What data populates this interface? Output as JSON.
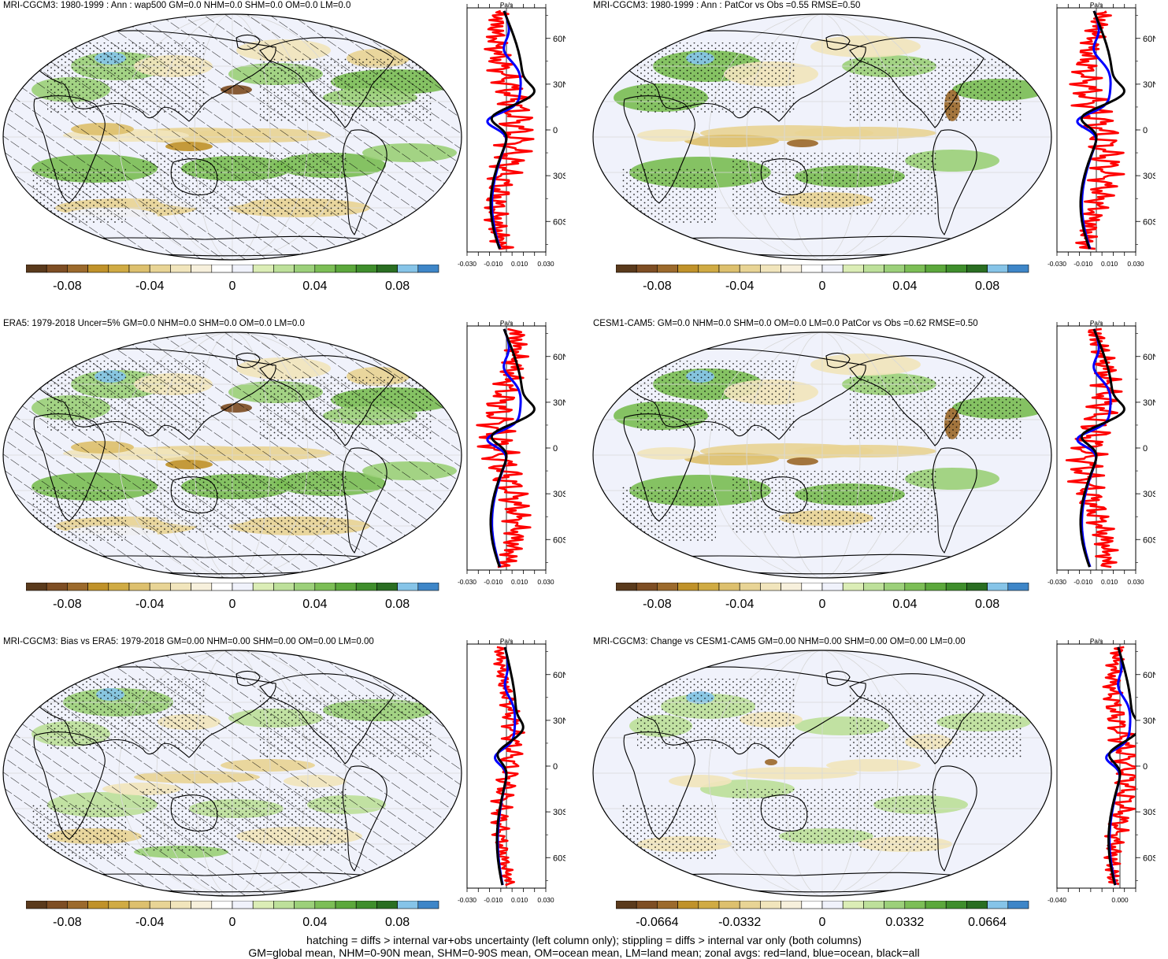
{
  "colors": {
    "land_line": "#000000",
    "zonal_land": "#ff0000",
    "zonal_ocean": "#0000ff",
    "zonal_all": "#000000",
    "palette": [
      "#5a3a1c",
      "#7e4e24",
      "#9c6a2c",
      "#c0922a",
      "#d0ab44",
      "#ddc06e",
      "#e8d495",
      "#f1e5bc",
      "#f7f0dc",
      "#ffffff",
      "#f0f2fb",
      "#dbedb6",
      "#bde09a",
      "#9cd07a",
      "#7cbe56",
      "#5ca83c",
      "#3f8e2c",
      "#2a6e22",
      "#86c4e8",
      "#3e86c8"
    ]
  },
  "panels": [
    {
      "id": "mri-cgcm3",
      "title": "MRI-CGCM3: 1980-1999 : Ann : wap500 GM=0.0 NHM=0.0 SHM=0.0 OM=0.0 LM=0.0",
      "hatching": true,
      "zonal_unit": "Pa/s",
      "zonal_xlim": [
        -0.03,
        0.03
      ],
      "zonal_xtick_labels": [
        "-0.030",
        "-0.010",
        "0.010",
        "0.030"
      ],
      "lat_labels": [
        "60N",
        "30N",
        "0",
        "30S",
        "60S"
      ],
      "colorbar_labels": [
        "-0.08",
        "-0.04",
        "0",
        "0.04",
        "0.08"
      ]
    },
    {
      "id": "mri-cgcm3-vs-obs",
      "title": "MRI-CGCM3: 1980-1999 : Ann : PatCor vs Obs =0.55 RMSE=0.50",
      "hatching": false,
      "zonal_unit": "Pa/s",
      "zonal_xlim": [
        -0.03,
        0.03
      ],
      "zonal_xtick_labels": [
        "-0.030",
        "-0.010",
        "0.010",
        "0.030"
      ],
      "lat_labels": [
        "60N",
        "30N",
        "0",
        "30S",
        "60S"
      ],
      "colorbar_labels": [
        "-0.08",
        "-0.04",
        "0",
        "0.04",
        "0.08"
      ]
    },
    {
      "id": "era5",
      "title": "ERA5: 1979-2018 Uncer=5% GM=0.0 NHM=0.0 SHM=0.0 OM=0.0 LM=0.0",
      "hatching": true,
      "zonal_unit": "Pa/s",
      "zonal_xlim": [
        -0.03,
        0.03
      ],
      "zonal_xtick_labels": [
        "-0.030",
        "-0.010",
        "0.010",
        "0.030"
      ],
      "lat_labels": [
        "60N",
        "30N",
        "0",
        "30S",
        "60S"
      ],
      "colorbar_labels": [
        "-0.08",
        "-0.04",
        "0",
        "0.04",
        "0.08"
      ]
    },
    {
      "id": "cesm1-cam5",
      "title": "CESM1-CAM5: GM=0.0 NHM=0.0 SHM=0.0 OM=0.0 LM=0.0 PatCor vs Obs =0.62 RMSE=0.50",
      "hatching": false,
      "zonal_unit": "Pa/s",
      "zonal_xlim": [
        -0.03,
        0.03
      ],
      "zonal_xtick_labels": [
        "-0.030",
        "-0.010",
        "0.010",
        "0.030"
      ],
      "lat_labels": [
        "60N",
        "30N",
        "0",
        "30S",
        "60S"
      ],
      "colorbar_labels": [
        "-0.08",
        "-0.04",
        "0",
        "0.04",
        "0.08"
      ]
    },
    {
      "id": "mri-bias-vs-era5",
      "title": "MRI-CGCM3: Bias vs ERA5: 1979-2018 GM=0.00 NHM=0.00 SHM=0.00 OM=0.00 LM=0.00",
      "hatching": true,
      "zonal_unit": "Pa/s",
      "zonal_xlim": [
        -0.03,
        0.03
      ],
      "zonal_xtick_labels": [
        "-0.030",
        "-0.010",
        "0.010",
        "0.030"
      ],
      "lat_labels": [
        "60N",
        "30N",
        "0",
        "30S",
        "60S"
      ],
      "colorbar_labels": [
        "-0.08",
        "-0.04",
        "0",
        "0.04",
        "0.08"
      ]
    },
    {
      "id": "mri-change-vs-cesm1",
      "title": "MRI-CGCM3: Change vs CESM1-CAM5 GM=0.00 NHM=0.00 SHM=0.00 OM=0.00 LM=0.00",
      "hatching": false,
      "zonal_unit": "Pa/s",
      "zonal_xlim": [
        -0.04,
        0.01
      ],
      "zonal_xtick_labels": [
        "-0.040",
        "0.000"
      ],
      "lat_labels": [
        "60N",
        "30N",
        "0",
        "30S",
        "60S"
      ],
      "colorbar_labels": [
        "-0.0664",
        "-0.0332",
        "0",
        "0.0332",
        "0.0664"
      ]
    }
  ],
  "footer": {
    "line1": "hatching = diffs > internal var+obs uncertainty (left column only); stippling = diffs > internal var only (both columns)",
    "line2": "GM=global mean, NHM=0-90N mean, SHM=0-90S mean, OM=ocean mean, LM=land mean; zonal avgs: red=land, blue=ocean, black=all"
  }
}
